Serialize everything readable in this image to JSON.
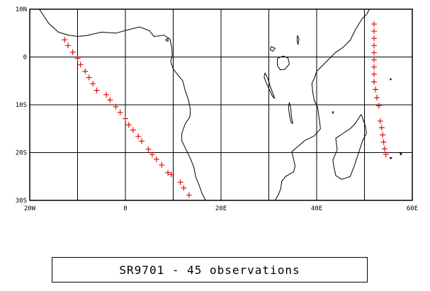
{
  "map": {
    "lon_range": [
      -20,
      60
    ],
    "lat_range": [
      -30,
      10
    ],
    "grid_lon_step": 10,
    "grid_lat_step": 10,
    "lat_labels": [
      {
        "lat": 10,
        "text": "10N"
      },
      {
        "lat": 0,
        "text": "0"
      },
      {
        "lat": -10,
        "text": "10S"
      },
      {
        "lat": -20,
        "text": "20S"
      },
      {
        "lat": -30,
        "text": "30S"
      }
    ],
    "lon_labels": [
      {
        "lon": -20,
        "text": "20W"
      },
      {
        "lon": 0,
        "text": "0"
      },
      {
        "lon": 20,
        "text": "20E"
      },
      {
        "lon": 40,
        "text": "40E"
      },
      {
        "lon": 60,
        "text": "60E"
      }
    ],
    "colors": {
      "frame": "#000000",
      "coast": "#000000",
      "marker": "#e01010"
    },
    "marker_symbol": "+",
    "observations": [
      {
        "lon": -12.7,
        "lat": 3.6
      },
      {
        "lon": -12.0,
        "lat": 2.4
      },
      {
        "lon": -11.0,
        "lat": 1.0
      },
      {
        "lon": -10.0,
        "lat": -0.3
      },
      {
        "lon": -9.4,
        "lat": -1.6
      },
      {
        "lon": -8.4,
        "lat": -3.0
      },
      {
        "lon": -7.6,
        "lat": -4.3
      },
      {
        "lon": -6.8,
        "lat": -5.6
      },
      {
        "lon": -6.0,
        "lat": -7.0
      },
      {
        "lon": -4.0,
        "lat": -7.9
      },
      {
        "lon": -3.2,
        "lat": -9.0
      },
      {
        "lon": -2.0,
        "lat": -10.4
      },
      {
        "lon": -1.1,
        "lat": -11.6
      },
      {
        "lon": 0.0,
        "lat": -12.9
      },
      {
        "lon": 0.7,
        "lat": -14.2
      },
      {
        "lon": 1.6,
        "lat": -15.3
      },
      {
        "lon": 2.7,
        "lat": -16.6
      },
      {
        "lon": 3.4,
        "lat": -17.6
      },
      {
        "lon": 4.8,
        "lat": -19.3
      },
      {
        "lon": 5.6,
        "lat": -20.4
      },
      {
        "lon": 6.5,
        "lat": -21.4
      },
      {
        "lon": 7.6,
        "lat": -22.6
      },
      {
        "lon": 8.9,
        "lat": -24.2
      },
      {
        "lon": 9.6,
        "lat": -24.6
      },
      {
        "lon": 11.5,
        "lat": -26.2
      },
      {
        "lon": 12.2,
        "lat": -27.4
      },
      {
        "lon": 13.3,
        "lat": -28.9
      },
      {
        "lon": 52.0,
        "lat": 6.9
      },
      {
        "lon": 52.0,
        "lat": 5.4
      },
      {
        "lon": 52.0,
        "lat": 3.9
      },
      {
        "lon": 52.0,
        "lat": 2.4
      },
      {
        "lon": 52.0,
        "lat": 0.9
      },
      {
        "lon": 52.0,
        "lat": -0.6
      },
      {
        "lon": 52.0,
        "lat": -2.1
      },
      {
        "lon": 52.0,
        "lat": -3.6
      },
      {
        "lon": 52.0,
        "lat": -5.2
      },
      {
        "lon": 52.3,
        "lat": -6.8
      },
      {
        "lon": 52.6,
        "lat": -8.5
      },
      {
        "lon": 53.0,
        "lat": -10.2
      },
      {
        "lon": 53.3,
        "lat": -13.4
      },
      {
        "lon": 53.6,
        "lat": -14.8
      },
      {
        "lon": 53.8,
        "lat": -16.3
      },
      {
        "lon": 54.0,
        "lat": -17.8
      },
      {
        "lon": 54.2,
        "lat": -19.2
      },
      {
        "lon": 54.5,
        "lat": -20.4
      }
    ]
  },
  "caption": "SR9701 - 45 observations"
}
